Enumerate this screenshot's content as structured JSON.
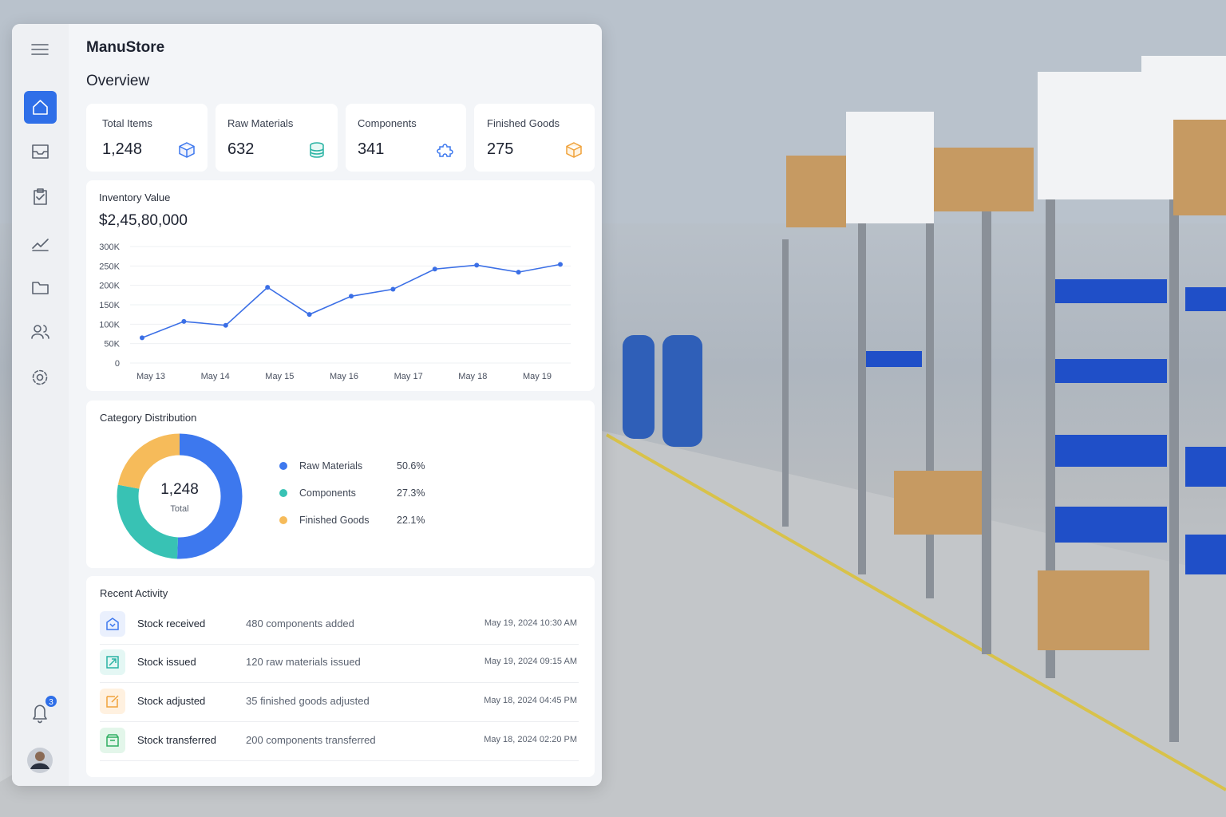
{
  "app": {
    "name": "ManuStore",
    "page_title": "Overview",
    "notification_count": "3"
  },
  "stats": [
    {
      "label": "Total Items",
      "value": "1,248"
    },
    {
      "label": "Raw Materials",
      "value": "632"
    },
    {
      "label": "Components",
      "value": "341"
    },
    {
      "label": "Finished Goods",
      "value": "275"
    }
  ],
  "inventory_value": {
    "title": "Inventory Value",
    "total": "$2,45,80,000"
  },
  "category_distribution": {
    "title": "Category Distribution",
    "center_value": "1,248",
    "center_label": "Total"
  },
  "chart_data": [
    {
      "type": "line",
      "x_labels": [
        "May 13",
        "May 14",
        "May 15",
        "May 16",
        "May 17",
        "May 18",
        "May 19"
      ],
      "values": [
        65000,
        107000,
        97000,
        195000,
        125000,
        172000,
        190000,
        242000,
        252000,
        234000,
        254000
      ],
      "ylim": [
        0,
        300000
      ],
      "yticks": [
        0,
        {
          "value": 50000,
          "label": "50K"
        },
        {
          "value": 100000,
          "label": "100K"
        },
        {
          "value": 150000,
          "label": "150K"
        },
        {
          "value": 200000,
          "label": "200K"
        },
        {
          "value": 250000,
          "label": "250K"
        },
        {
          "value": 300000,
          "label": "300K"
        }
      ],
      "grid": true,
      "color": "#3b6fe6"
    },
    {
      "type": "pie",
      "categories": [
        "Raw Materials",
        "Components",
        "Finished Goods"
      ],
      "values": [
        50.6,
        27.3,
        22.1
      ],
      "value_labels": [
        "50.6%",
        "27.3%",
        "22.1%"
      ],
      "colors": [
        "#3d78ee",
        "#38c2b4",
        "#f6bb5a"
      ]
    }
  ],
  "recent_activity": {
    "title": "Recent Activity",
    "rows": [
      {
        "title": "Stock received",
        "description": "480 components added",
        "time": "May 19, 2024 10:30 AM"
      },
      {
        "title": "Stock issued",
        "description": "120 raw materials issued",
        "time": "May 19, 2024 09:15 AM"
      },
      {
        "title": "Stock adjusted",
        "description": "35 finished goods adjusted",
        "time": "May 18, 2024 04:45 PM"
      },
      {
        "title": "Stock transferred",
        "description": "200 components transferred",
        "time": "May 18, 2024 02:20 PM"
      }
    ]
  }
}
